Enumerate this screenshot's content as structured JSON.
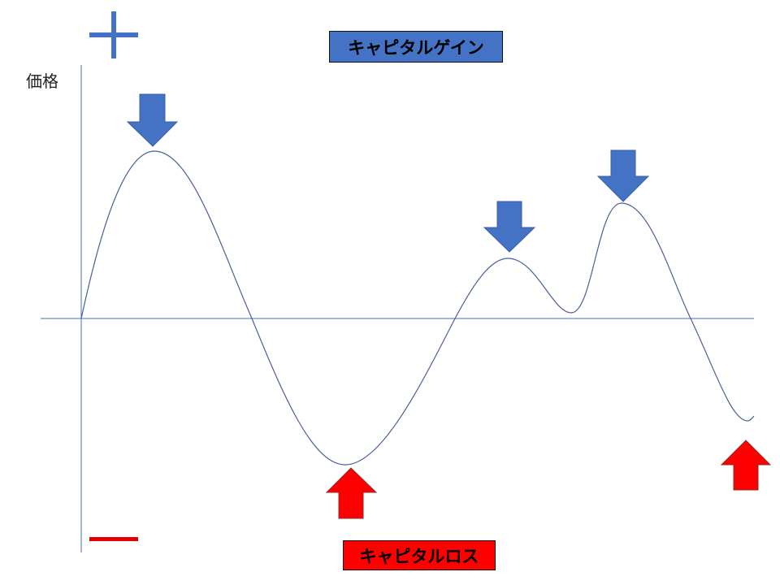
{
  "axis": {
    "y_label": "価格"
  },
  "labels": {
    "gain": "キャピタルゲイン",
    "loss": "キャピタルロス"
  },
  "symbols": {
    "plus": "plus-sign",
    "minus": "minus-sign"
  },
  "colors": {
    "gain": "#4472c4",
    "loss": "#ff0000",
    "curve": "#4a5f9a",
    "axis": "#4472c4"
  }
}
